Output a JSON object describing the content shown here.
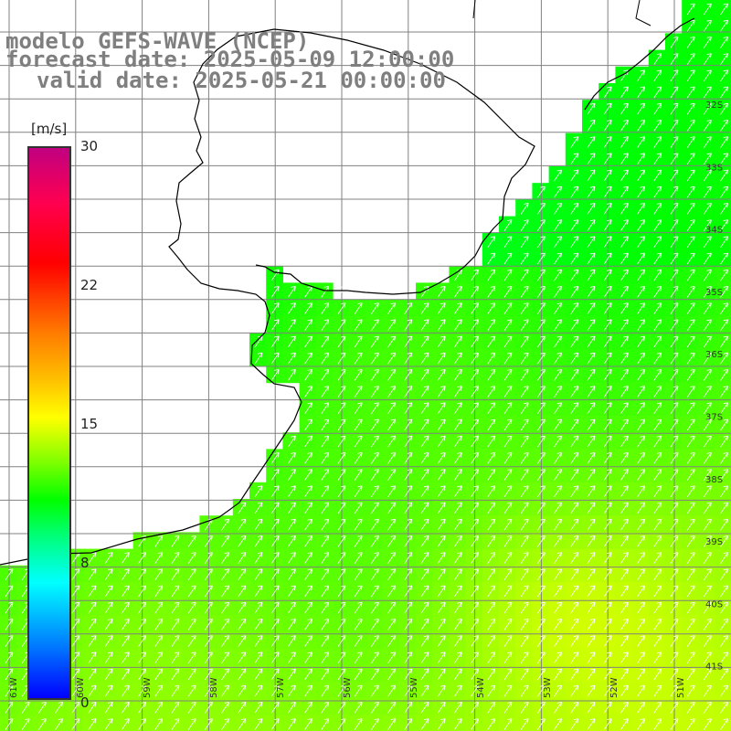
{
  "title": {
    "line1": "modelo GEFS-WAVE (NCEP)",
    "line2": "forecast date: 2025-05-09 12:00:00",
    "line3": "valid date: 2025-05-21 00:00:00"
  },
  "colorbar": {
    "unit": "[m/s]",
    "ticks": [
      "30",
      "22",
      "15",
      "8",
      "0"
    ],
    "min": 0,
    "max": 30,
    "colors": [
      "#0000ff",
      "#0080ff",
      "#00ffff",
      "#00ff80",
      "#00ff00",
      "#80ff00",
      "#ffff00",
      "#ffbf00",
      "#ff7f00",
      "#ff0000",
      "#c00080"
    ]
  },
  "map": {
    "lon_labels": [
      "61W",
      "60W",
      "59W",
      "58W",
      "57W",
      "56W",
      "55W",
      "54W",
      "53W",
      "52W",
      "51W"
    ],
    "lat_labels": [
      "32S",
      "33S",
      "34S",
      "35S",
      "36S",
      "37S",
      "38S",
      "39S",
      "40S",
      "41S"
    ],
    "wind_direction": "toward north-east",
    "grid_color": "#808080",
    "coast_color": "#000000"
  }
}
